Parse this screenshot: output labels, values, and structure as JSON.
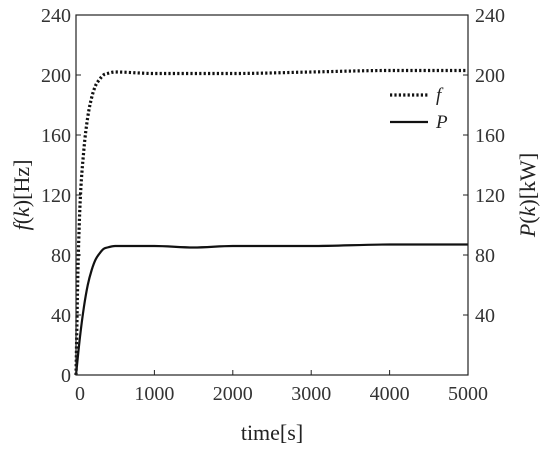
{
  "chart_data": {
    "type": "line",
    "xlabel": "time[s]",
    "ylabel_left": {
      "italic": "f",
      "paren_open": "(",
      "var": "k",
      "paren_close": ")",
      "unit": "[Hz]"
    },
    "ylabel_right": {
      "italic": "P",
      "paren_open": "(",
      "var": "k",
      "paren_close": ")",
      "unit": "[kW]"
    },
    "xlim": [
      0,
      5000
    ],
    "ylim_left": [
      0,
      240
    ],
    "ylim_right": [
      0,
      240
    ],
    "x_ticks": [
      "0",
      "1000",
      "2000",
      "3000",
      "4000",
      "5000"
    ],
    "y_ticks_left": [
      "0",
      "40",
      "80",
      "120",
      "160",
      "200",
      "240"
    ],
    "y_ticks_right": [
      "40",
      "80",
      "120",
      "160",
      "200",
      "240"
    ],
    "grid": false,
    "legend_position": "top-right",
    "series": [
      {
        "name": "f",
        "style": "dotted",
        "axis": "left",
        "points": [
          [
            0,
            0
          ],
          [
            25,
            70
          ],
          [
            50,
            112
          ],
          [
            100,
            150
          ],
          [
            150,
            172
          ],
          [
            200,
            185
          ],
          [
            250,
            193
          ],
          [
            300,
            197
          ],
          [
            350,
            200
          ],
          [
            400,
            201
          ],
          [
            500,
            202
          ],
          [
            1000,
            201
          ],
          [
            2000,
            201
          ],
          [
            3000,
            202
          ],
          [
            4000,
            203
          ],
          [
            5000,
            203
          ]
        ]
      },
      {
        "name": "P",
        "style": "solid",
        "axis": "right",
        "points": [
          [
            0,
            0
          ],
          [
            50,
            25
          ],
          [
            100,
            45
          ],
          [
            150,
            60
          ],
          [
            200,
            70
          ],
          [
            250,
            77
          ],
          [
            300,
            81
          ],
          [
            350,
            84
          ],
          [
            400,
            85
          ],
          [
            500,
            86
          ],
          [
            1000,
            86
          ],
          [
            1500,
            85
          ],
          [
            2000,
            86
          ],
          [
            3000,
            86
          ],
          [
            4000,
            87
          ],
          [
            5000,
            87
          ]
        ]
      }
    ]
  }
}
